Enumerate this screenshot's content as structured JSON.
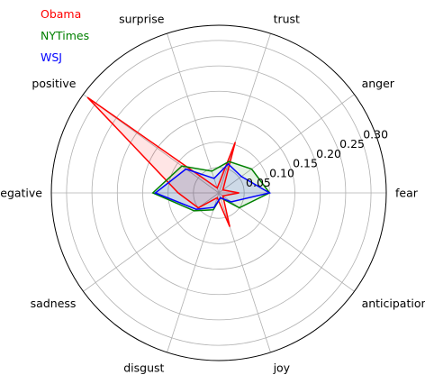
{
  "chart_data": {
    "type": "radar",
    "categories": [
      "fear",
      "anger",
      "trust",
      "surprise",
      "positive",
      "negative",
      "sadness",
      "disgust",
      "joy",
      "anticipation"
    ],
    "rlim": [
      0,
      0.33
    ],
    "rticks": [
      "0.05",
      "0.10",
      "0.15",
      "0.20",
      "0.25",
      "0.30"
    ],
    "rtick_values": [
      0.05,
      0.1,
      0.15,
      0.2,
      0.25,
      0.3
    ],
    "grid": true,
    "legend_position": "top-left",
    "series": [
      {
        "name": "Obama",
        "color": "#ff0000",
        "fill": true,
        "values": [
          0.04,
          0.01,
          0.105,
          0.01,
          0.32,
          0.08,
          0.05,
          0.01,
          0.07,
          0.01
        ]
      },
      {
        "name": "NYTimes",
        "color": "#008000",
        "fill": true,
        "values": [
          0.1,
          0.08,
          0.065,
          0.045,
          0.09,
          0.13,
          0.06,
          0.035,
          0.01,
          0.05
        ]
      },
      {
        "name": "WSJ",
        "color": "#0000ff",
        "fill": true,
        "values": [
          0.1,
          0.055,
          0.06,
          0.03,
          0.08,
          0.125,
          0.055,
          0.03,
          0.01,
          0.03
        ]
      }
    ]
  }
}
